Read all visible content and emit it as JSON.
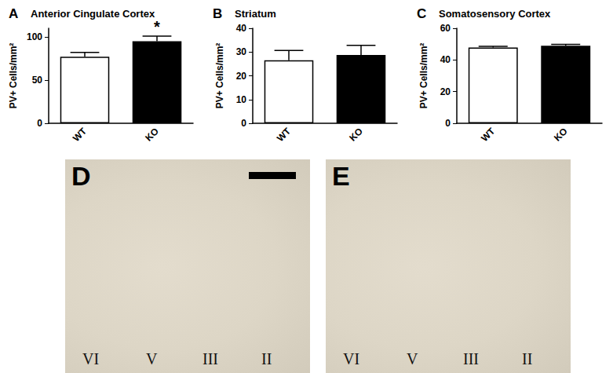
{
  "chart_data": [
    {
      "type": "bar",
      "panel": "A",
      "title": "Anterior Cingulate Cortex",
      "y_label": "PV+ Cells/mm²",
      "categories": [
        "WT",
        "KO"
      ],
      "values": [
        77,
        95
      ],
      "errors": [
        5,
        6
      ],
      "colors": [
        "#ffffff",
        "#000000"
      ],
      "ylim": [
        0,
        110
      ],
      "yticks": [
        0,
        50,
        100
      ],
      "grid": false,
      "annotations": [
        {
          "category": "KO",
          "text": "*"
        }
      ]
    },
    {
      "type": "bar",
      "panel": "B",
      "title": "Striatum",
      "y_label": "PV+ Cells/mm²",
      "categories": [
        "WT",
        "KO"
      ],
      "values": [
        26.5,
        28.8
      ],
      "errors": [
        4.2,
        4.0
      ],
      "colors": [
        "#ffffff",
        "#000000"
      ],
      "ylim": [
        0,
        40
      ],
      "yticks": [
        0,
        10,
        20,
        30,
        40
      ],
      "grid": false
    },
    {
      "type": "bar",
      "panel": "C",
      "title": "Somatosensory Cortex",
      "y_label": "PV+ Cells/mm²",
      "categories": [
        "WT",
        "KO"
      ],
      "values": [
        47.8,
        49
      ],
      "errors": [
        0.8,
        0.8
      ],
      "colors": [
        "#ffffff",
        "#000000"
      ],
      "ylim": [
        0,
        60
      ],
      "yticks": [
        0,
        20,
        40,
        60
      ],
      "grid": false
    }
  ],
  "images": [
    {
      "panel": "D",
      "layers": [
        "VI",
        "V",
        "III",
        "II"
      ]
    },
    {
      "panel": "E",
      "layers": [
        "VI",
        "V",
        "III",
        "II"
      ]
    }
  ]
}
